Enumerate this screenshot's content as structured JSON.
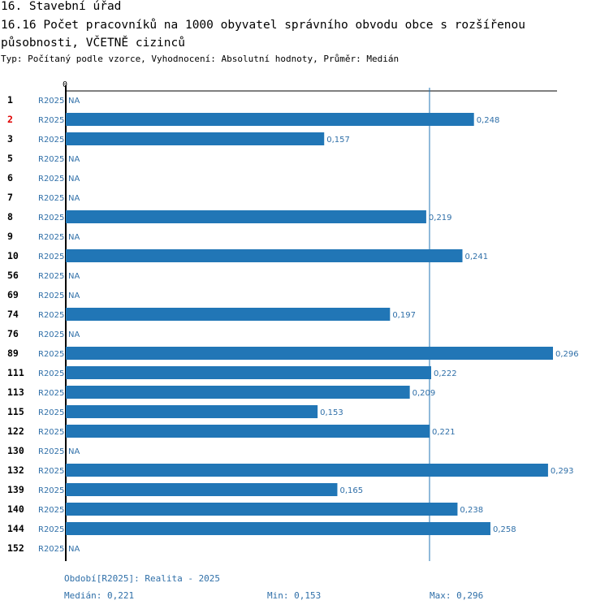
{
  "header": {
    "section": "16. Stavební úřad",
    "title": "16.16 Počet pracovníků na 1000 obyvatel správního obvodu obce s rozšířenou působnosti, VČETNĚ cizinců",
    "subtitle": "Typ: Počítaný podle vzorce, Vyhodnocení: Absolutní hodnoty, Průměr: Medián"
  },
  "colors": {
    "bar": "#2176b6",
    "text_blue": "#2f6fa8",
    "highlight": "#e00000",
    "axis": "#000000"
  },
  "chart_data": {
    "type": "bar",
    "orientation": "horizontal",
    "axis_zero_label": "0",
    "xlim": [
      0,
      0.296
    ],
    "median_line": 0.221,
    "highlight_category": "2",
    "series_label": "R2025",
    "na_label": "NA",
    "categories": [
      "1",
      "2",
      "3",
      "5",
      "6",
      "7",
      "8",
      "9",
      "10",
      "56",
      "69",
      "74",
      "76",
      "89",
      "111",
      "113",
      "115",
      "122",
      "130",
      "132",
      "139",
      "140",
      "144",
      "152"
    ],
    "values": [
      null,
      0.248,
      0.157,
      null,
      null,
      null,
      0.219,
      null,
      0.241,
      null,
      null,
      0.197,
      null,
      0.296,
      0.222,
      0.209,
      0.153,
      0.221,
      null,
      0.293,
      0.165,
      0.238,
      0.258,
      null
    ],
    "value_labels": [
      "NA",
      "0,248",
      "0,157",
      "NA",
      "NA",
      "NA",
      "0,219",
      "NA",
      "0,241",
      "NA",
      "NA",
      "0,197",
      "NA",
      "0,296",
      "0,222",
      "0,209",
      "0,153",
      "0,221",
      "NA",
      "0,293",
      "0,165",
      "0,238",
      "0,258",
      "NA"
    ]
  },
  "footer": {
    "period": "Období[R2025]: Realita - 2025",
    "median": "Medián: 0,221",
    "min": "Min: 0,153",
    "max": "Max: 0,296"
  }
}
